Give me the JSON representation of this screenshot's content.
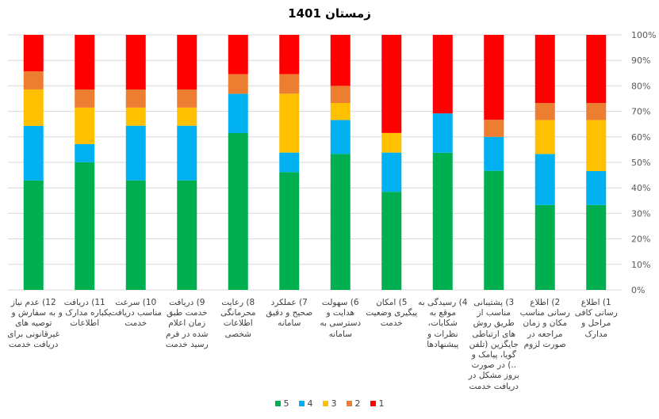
{
  "chart_data": {
    "type": "bar",
    "stacked": true,
    "percent_stacked": true,
    "title": "زمستان 1401",
    "xlabel": "",
    "ylabel": "",
    "ylim": [
      0,
      100
    ],
    "y_ticks": [
      "0%",
      "10%",
      "20%",
      "30%",
      "40%",
      "50%",
      "60%",
      "70%",
      "80%",
      "90%",
      "100%"
    ],
    "y_axis_position": "right",
    "x_axis_direction": "right-to-left",
    "grid": true,
    "legend_position": "bottom",
    "categories": [
      "1) اطلاع رسانی کافی مراحل و مدارک",
      "2) اطلاع رسانی مناسب مکان و زمان مراجعه در صورت لزوم",
      "3) پشتیبانی مناسب از طریق روش های ارتباطی جایگزین (تلفن گویا، پیامک و ..) در صورت بروز مشکل در دریافت خدمت",
      "4) رسیدگی به موقع به شکایات، نظرات و پیشنهادها",
      "5) امکان پیگیری وضعیت خدمت",
      "6) سهولت هدایت و دسترسی به سامانه",
      "7) عملکرد صحیح و دقیق سامانه",
      "8) رعایت محرمانگی اطلاعات شخصی",
      "9) دریافت خدمت طبق زمان اعلام شده در فرم رسید خدمت",
      "10) سرعت مناسب دریافت خدمت",
      "11) دریافت یکباره مدارک و اطلاعات",
      "12) عدم نیاز به سفارش و توصیه های غیرقانونی برای دریافت خدمت"
    ],
    "series": [
      {
        "name": "5",
        "color": "#00B050",
        "values": [
          33.3,
          33.3,
          46.7,
          53.8,
          38.5,
          53.3,
          46.2,
          61.5,
          42.9,
          42.9,
          50.0,
          42.9
        ]
      },
      {
        "name": "4",
        "color": "#00B0F0",
        "values": [
          13.3,
          20.0,
          13.3,
          15.4,
          15.4,
          13.3,
          7.7,
          15.4,
          21.4,
          21.4,
          7.1,
          21.4
        ]
      },
      {
        "name": "3",
        "color": "#FFC000",
        "values": [
          20.0,
          13.3,
          0.0,
          0.0,
          7.7,
          6.7,
          23.1,
          0.0,
          7.1,
          7.1,
          14.3,
          14.3
        ]
      },
      {
        "name": "2",
        "color": "#ED7D31",
        "values": [
          6.7,
          6.7,
          6.7,
          0.0,
          0.0,
          6.7,
          7.7,
          7.7,
          7.1,
          7.1,
          7.1,
          7.1
        ]
      },
      {
        "name": "1",
        "color": "#FF0000",
        "values": [
          26.7,
          26.7,
          33.3,
          30.8,
          38.5,
          20.0,
          15.4,
          15.4,
          21.4,
          21.4,
          21.4,
          14.3
        ]
      }
    ]
  }
}
